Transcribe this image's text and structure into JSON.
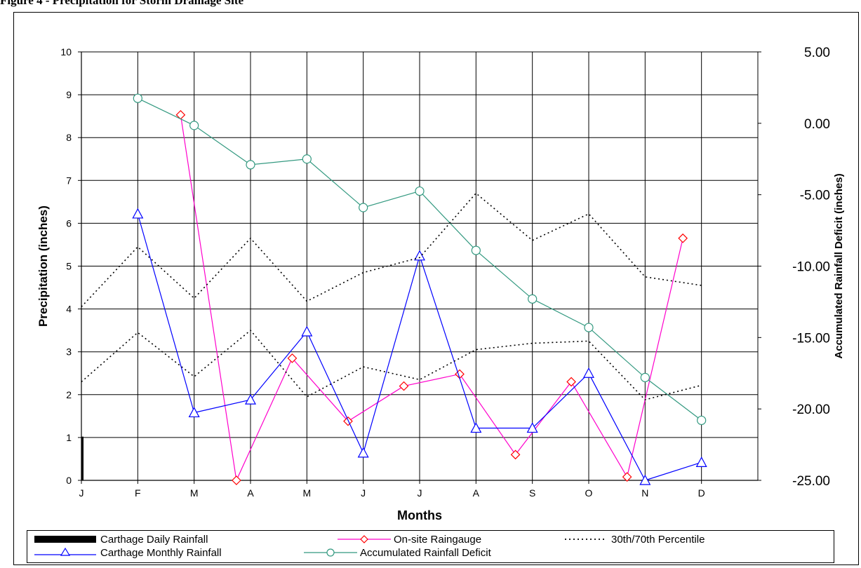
{
  "page_title": "Figure 4 - Precipitation for Storm Drainage Site",
  "colors": {
    "daily": "#000000",
    "onsite": "#ff00cc",
    "monthly": "#0000ff",
    "deficit": "#339980",
    "percentile": "#000000",
    "grid": "#000000"
  },
  "chart_data": {
    "type": "line",
    "xlabel": "Months",
    "ylabel": "Precipitation (inches)",
    "y2label": "Accumulated Rainfall Deficit (inches)",
    "x_ticks": [
      "J",
      "F",
      "M",
      "A",
      "M",
      "J",
      "J",
      "A",
      "S",
      "O",
      "N",
      "D"
    ],
    "x_range": [
      0,
      12
    ],
    "ylim": [
      0,
      10
    ],
    "y_ticks": [
      "0",
      "1",
      "2",
      "3",
      "4",
      "5",
      "6",
      "7",
      "8",
      "9",
      "10"
    ],
    "y2lim": [
      -25,
      5
    ],
    "y2_ticks": [
      "-25.00",
      "-20.00",
      "-15.00",
      "-10.00",
      "-5.00",
      "0.00",
      "5.00"
    ],
    "grid": "on",
    "series": [
      {
        "key": "daily",
        "name": "Carthage Daily Rainfall",
        "style": "bar",
        "axis": "left",
        "points": [
          [
            0.0,
            1.02
          ]
        ]
      },
      {
        "key": "onsite",
        "name": "On-site Raingauge",
        "style": "line-diamond",
        "axis": "left",
        "points": [
          [
            1.76,
            8.53
          ],
          [
            2.75,
            0.0
          ],
          [
            3.74,
            2.85
          ],
          [
            4.73,
            1.38
          ],
          [
            5.72,
            2.2
          ],
          [
            6.71,
            2.48
          ],
          [
            7.7,
            0.6
          ],
          [
            8.69,
            2.3
          ],
          [
            9.68,
            0.08
          ],
          [
            10.67,
            5.65
          ]
        ]
      },
      {
        "key": "monthly",
        "name": "Carthage Monthly Rainfall",
        "style": "line-triangle",
        "axis": "left",
        "points": [
          [
            1.0,
            6.22
          ],
          [
            2.0,
            1.58
          ],
          [
            3.0,
            1.88
          ],
          [
            4.0,
            3.47
          ],
          [
            5.0,
            0.64
          ],
          [
            6.0,
            5.24
          ],
          [
            7.0,
            1.22
          ],
          [
            8.0,
            1.22
          ],
          [
            9.0,
            2.5
          ],
          [
            10.0,
            0.0
          ],
          [
            11.0,
            0.42
          ]
        ]
      },
      {
        "key": "deficit",
        "name": "Accumulated Rainfall Deficit",
        "style": "line-circle",
        "axis": "right",
        "points": [
          [
            1.0,
            1.75
          ],
          [
            2.0,
            -0.15
          ],
          [
            3.0,
            -2.9
          ],
          [
            4.0,
            -2.5
          ],
          [
            5.0,
            -5.9
          ],
          [
            6.0,
            -4.75
          ],
          [
            7.0,
            -8.9
          ],
          [
            8.0,
            -12.3
          ],
          [
            9.0,
            -14.3
          ],
          [
            10.0,
            -17.8
          ],
          [
            11.0,
            -20.8
          ]
        ]
      },
      {
        "key": "p70",
        "name": "30th/70th Percentile",
        "style": "dotted",
        "axis": "left",
        "points": [
          [
            0.0,
            4.05
          ],
          [
            1.0,
            5.45
          ],
          [
            2.0,
            4.25
          ],
          [
            3.0,
            5.65
          ],
          [
            4.0,
            4.18
          ],
          [
            5.0,
            4.85
          ],
          [
            6.0,
            5.2
          ],
          [
            7.0,
            6.7
          ],
          [
            8.0,
            5.6
          ],
          [
            9.0,
            6.22
          ],
          [
            10.0,
            4.75
          ],
          [
            11.0,
            4.55
          ]
        ]
      },
      {
        "key": "p30",
        "name": "",
        "style": "dotted",
        "axis": "left",
        "points": [
          [
            0.0,
            2.3
          ],
          [
            1.0,
            3.45
          ],
          [
            2.0,
            2.42
          ],
          [
            3.0,
            3.5
          ],
          [
            4.0,
            1.95
          ],
          [
            5.0,
            2.65
          ],
          [
            6.0,
            2.35
          ],
          [
            7.0,
            3.05
          ],
          [
            8.0,
            3.2
          ],
          [
            9.0,
            3.25
          ],
          [
            10.0,
            1.88
          ],
          [
            11.0,
            2.22
          ]
        ]
      }
    ],
    "legend": {
      "placement": "bottom",
      "items": [
        {
          "label": "Carthage Daily Rainfall",
          "key": "daily"
        },
        {
          "label": "On-site Raingauge",
          "key": "onsite"
        },
        {
          "label": "30th/70th Percentile",
          "key": "p70"
        },
        {
          "label": "Carthage Monthly Rainfall",
          "key": "monthly"
        },
        {
          "label": "Accumulated Rainfall Deficit",
          "key": "deficit"
        }
      ]
    }
  }
}
